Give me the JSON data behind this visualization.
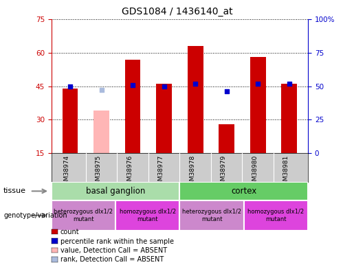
{
  "title": "GDS1084 / 1436140_at",
  "samples": [
    "GSM38974",
    "GSM38975",
    "GSM38976",
    "GSM38977",
    "GSM38978",
    "GSM38979",
    "GSM38980",
    "GSM38981"
  ],
  "count_values": [
    44,
    34,
    57,
    46,
    63,
    28,
    58,
    46
  ],
  "count_absent": [
    false,
    true,
    false,
    false,
    false,
    false,
    false,
    false
  ],
  "percentile_values": [
    50,
    47,
    51,
    50,
    52,
    46,
    52,
    52
  ],
  "percentile_absent": [
    false,
    true,
    false,
    false,
    false,
    false,
    false,
    false
  ],
  "ylim_left": [
    15,
    75
  ],
  "ylim_right": [
    0,
    100
  ],
  "yticks_left": [
    15,
    30,
    45,
    60,
    75
  ],
  "yticks_right": [
    0,
    25,
    50,
    75,
    100
  ],
  "yticklabels_right": [
    "0",
    "25",
    "50",
    "75",
    "100%"
  ],
  "count_color": "#cc0000",
  "count_absent_color": "#ffb6b6",
  "percentile_color": "#0000cc",
  "percentile_absent_color": "#aabbdd",
  "bar_width": 0.5,
  "tissue_groups": [
    {
      "label": "basal ganglion",
      "span": [
        0,
        4
      ],
      "color": "#aaddaa"
    },
    {
      "label": "cortex",
      "span": [
        4,
        8
      ],
      "color": "#55cc55"
    }
  ],
  "genotype_groups": [
    {
      "label": "heterozygous dlx1/2\nmutant",
      "span": [
        0,
        2
      ],
      "color": "#dd88dd"
    },
    {
      "label": "homozygous dlx1/2\nmutant",
      "span": [
        2,
        4
      ],
      "color": "#ee44ee"
    },
    {
      "label": "heterozygous dlx1/2\nmutant",
      "span": [
        4,
        6
      ],
      "color": "#dd88dd"
    },
    {
      "label": "homozygous dlx1/2\nmutant",
      "span": [
        6,
        8
      ],
      "color": "#ee44ee"
    }
  ],
  "legend_items": [
    {
      "label": "count",
      "color": "#cc0000"
    },
    {
      "label": "percentile rank within the sample",
      "color": "#0000cc"
    },
    {
      "label": "value, Detection Call = ABSENT",
      "color": "#ffb6b6"
    },
    {
      "label": "rank, Detection Call = ABSENT",
      "color": "#aabbdd"
    }
  ],
  "xlabel_tissue": "tissue",
  "xlabel_genotype": "genotype/variation",
  "bg_color": "#ffffff",
  "axis_color_left": "#cc0000",
  "axis_color_right": "#0000cc"
}
